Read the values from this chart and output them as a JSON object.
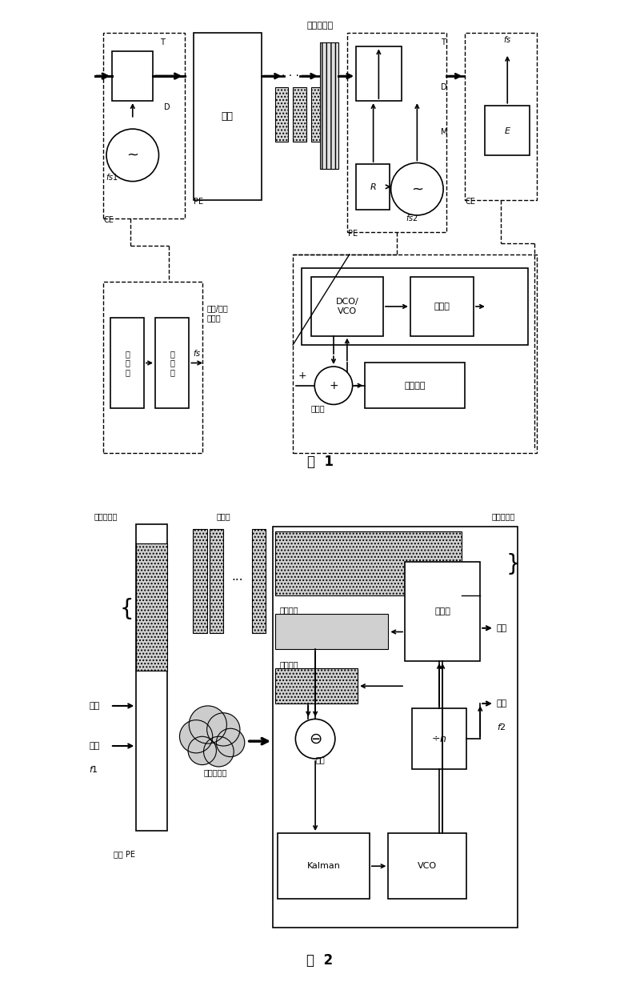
{
  "bg": "#ffffff",
  "lc": "#000000",
  "fig1_caption": "图  1",
  "fig2_caption": "图  2",
  "ethernet_label": "以太网网络",
  "fig1": {
    "ce_left_label": "CE",
    "pe_left_label": "PE",
    "mapping_label": "映射",
    "pe_mid_label": "PE",
    "ce_right_label": "CE",
    "fs1_label": "fs1",
    "fs2_label": "fs2",
    "fs_label": "fs",
    "T_label": "T",
    "D_label": "D",
    "M_label": "M",
    "R_label": "R",
    "E_label": "E",
    "osc_label": "振\n荡\n器",
    "divider_label": "分\n频\n器",
    "dco_label": "DCO/\nVCO",
    "freq_divider_label": "分频器",
    "loop_filter_label": "环路滤波",
    "phase_det_label": "鉴相器",
    "data_ts_buf_label": "数据/时戳\n缓冲区",
    "fs_small_label": "fs"
  },
  "fig2": {
    "send_buf_label": "发送缓冲区",
    "data_pkg_label": "数据包",
    "dejitter_buf_label": "去抖缓冲区",
    "data_label": "数据",
    "clock_label": "时钟",
    "f1_label": "f1",
    "f2_label": "f2",
    "send_pe_label": "发送 PE",
    "ethernet_label": "以太网网络",
    "recv_ts_label": "接收时戳",
    "send_ts_label": "发送时戳",
    "counter_label": "计数器",
    "div_n_label": "÷n",
    "diff_label": "差错",
    "kalman_label": "Kalman",
    "vco_label": "VCO"
  }
}
